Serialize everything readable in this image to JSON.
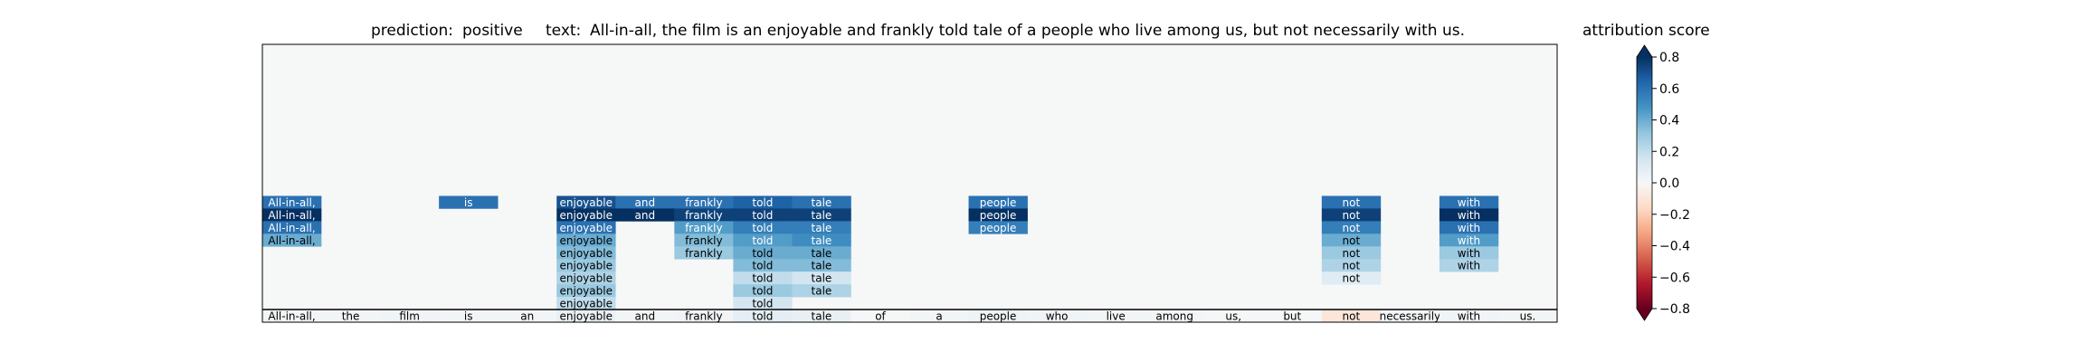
{
  "chart_data": {
    "type": "heatmap",
    "prediction_label": "prediction:",
    "prediction": "positive",
    "text_label": "text:",
    "text": "All-in-all, the film is an enjoyable and frankly told tale of a people who live among us, but not necessarily with us.",
    "tokens": [
      "All-in-all,",
      "the",
      "film",
      "is",
      "an",
      "enjoyable",
      "and",
      "frankly",
      "told",
      "tale",
      "of",
      "a",
      "people",
      "who",
      "live",
      "among",
      "us,",
      "but",
      "not",
      "necessarily",
      "with",
      "us."
    ],
    "rows": [
      [
        0,
        0,
        0,
        0,
        0,
        0,
        0,
        0,
        0,
        0,
        0,
        0,
        0,
        0,
        0,
        0,
        0,
        0,
        0,
        0,
        0,
        0
      ],
      [
        0,
        0,
        0,
        0,
        0,
        0,
        0,
        0,
        0,
        0,
        0,
        0,
        0,
        0,
        0,
        0,
        0,
        0,
        0,
        0,
        0,
        0
      ],
      [
        0,
        0,
        0,
        0,
        0,
        0,
        0,
        0,
        0,
        0,
        0,
        0,
        0,
        0,
        0,
        0,
        0,
        0,
        0,
        0,
        0,
        0
      ],
      [
        0,
        0,
        0,
        0,
        0,
        0,
        0,
        0,
        0,
        0,
        0,
        0,
        0,
        0,
        0,
        0,
        0,
        0,
        0,
        0,
        0,
        0
      ],
      [
        0,
        0,
        0,
        0,
        0,
        0,
        0,
        0,
        0,
        0,
        0,
        0,
        0,
        0,
        0,
        0,
        0,
        0,
        0,
        0,
        0,
        0
      ],
      [
        0,
        0,
        0,
        0,
        0,
        0,
        0,
        0,
        0,
        0,
        0,
        0,
        0,
        0,
        0,
        0,
        0,
        0,
        0,
        0,
        0,
        0
      ],
      [
        0,
        0,
        0,
        0,
        0,
        0,
        0,
        0,
        0,
        0,
        0,
        0,
        0,
        0,
        0,
        0,
        0,
        0,
        0,
        0,
        0,
        0
      ],
      [
        0,
        0,
        0,
        0,
        0,
        0,
        0,
        0,
        0,
        0,
        0,
        0,
        0,
        0,
        0,
        0,
        0,
        0,
        0,
        0,
        0,
        0
      ],
      [
        0,
        0,
        0,
        0,
        0,
        0,
        0,
        0,
        0,
        0,
        0,
        0,
        0,
        0,
        0,
        0,
        0,
        0,
        0,
        0,
        0,
        0
      ],
      [
        0,
        0,
        0,
        0,
        0,
        0,
        0,
        0,
        0,
        0,
        0,
        0,
        0,
        0,
        0,
        0,
        0,
        0,
        0,
        0,
        0,
        0
      ],
      [
        0,
        0,
        0,
        0,
        0,
        0,
        0,
        0,
        0,
        0,
        0,
        0,
        0,
        0,
        0,
        0,
        0,
        0,
        0,
        0,
        0,
        0
      ],
      [
        0,
        0,
        0,
        0,
        0,
        0,
        0,
        0,
        0,
        0,
        0,
        0,
        0,
        0,
        0,
        0,
        0,
        0,
        0,
        0,
        0,
        0
      ],
      [
        0.6,
        0,
        0,
        0.6,
        0,
        0.7,
        0.6,
        0.6,
        0.65,
        0.6,
        0,
        0,
        0.6,
        0,
        0,
        0,
        0,
        0,
        0.6,
        0,
        0.6,
        0
      ],
      [
        0.8,
        0,
        0,
        0,
        0,
        0.8,
        0.8,
        0.75,
        0.75,
        0.75,
        0,
        0,
        0.8,
        0,
        0,
        0,
        0,
        0,
        0.75,
        0,
        0.8,
        0
      ],
      [
        0.6,
        0,
        0,
        0,
        0,
        0.6,
        0,
        0.45,
        0.55,
        0.55,
        0,
        0,
        0.55,
        0,
        0,
        0,
        0,
        0,
        0.55,
        0,
        0.6,
        0
      ],
      [
        0.4,
        0,
        0,
        0,
        0,
        0.4,
        0,
        0.35,
        0.45,
        0.5,
        0,
        0,
        0,
        0,
        0,
        0,
        0,
        0,
        0.4,
        0,
        0.45,
        0
      ],
      [
        0,
        0,
        0,
        0,
        0,
        0.35,
        0,
        0.3,
        0.4,
        0.4,
        0,
        0,
        0,
        0,
        0,
        0,
        0,
        0,
        0.3,
        0,
        0.3,
        0
      ],
      [
        0,
        0,
        0,
        0,
        0,
        0.3,
        0,
        0,
        0.35,
        0.35,
        0,
        0,
        0,
        0,
        0,
        0,
        0,
        0,
        0.25,
        0,
        0.25,
        0
      ],
      [
        0,
        0,
        0,
        0,
        0,
        0.25,
        0,
        0,
        0.2,
        0.15,
        0,
        0,
        0,
        0,
        0,
        0,
        0,
        0,
        0.1,
        0,
        0,
        0
      ],
      [
        0,
        0,
        0,
        0,
        0,
        0.3,
        0,
        0,
        0.3,
        0.25,
        0,
        0,
        0,
        0,
        0,
        0,
        0,
        0,
        0,
        0,
        0,
        0
      ],
      [
        0,
        0,
        0,
        0,
        0,
        0.2,
        0,
        0,
        0.15,
        0,
        0,
        0,
        0,
        0,
        0,
        0,
        0,
        0,
        0,
        0,
        0,
        0
      ],
      [
        0.02,
        0.02,
        0.03,
        0.02,
        0.02,
        0.06,
        0.02,
        0.03,
        0.08,
        0.06,
        0.01,
        0.02,
        0.04,
        0.03,
        0.02,
        0.02,
        0.01,
        0.01,
        -0.1,
        0.02,
        0.03,
        0.02
      ]
    ],
    "show_token_text": [
      [
        0,
        0,
        0,
        0,
        0,
        0,
        0,
        0,
        0,
        0,
        0,
        0,
        0,
        0,
        0,
        0,
        0,
        0,
        0,
        0,
        0,
        0
      ],
      [
        0,
        0,
        0,
        0,
        0,
        0,
        0,
        0,
        0,
        0,
        0,
        0,
        0,
        0,
        0,
        0,
        0,
        0,
        0,
        0,
        0,
        0
      ],
      [
        0,
        0,
        0,
        0,
        0,
        0,
        0,
        0,
        0,
        0,
        0,
        0,
        0,
        0,
        0,
        0,
        0,
        0,
        0,
        0,
        0,
        0
      ],
      [
        0,
        0,
        0,
        0,
        0,
        0,
        0,
        0,
        0,
        0,
        0,
        0,
        0,
        0,
        0,
        0,
        0,
        0,
        0,
        0,
        0,
        0
      ],
      [
        0,
        0,
        0,
        0,
        0,
        0,
        0,
        0,
        0,
        0,
        0,
        0,
        0,
        0,
        0,
        0,
        0,
        0,
        0,
        0,
        0,
        0
      ],
      [
        0,
        0,
        0,
        0,
        0,
        0,
        0,
        0,
        0,
        0,
        0,
        0,
        0,
        0,
        0,
        0,
        0,
        0,
        0,
        0,
        0,
        0
      ],
      [
        0,
        0,
        0,
        0,
        0,
        0,
        0,
        0,
        0,
        0,
        0,
        0,
        0,
        0,
        0,
        0,
        0,
        0,
        0,
        0,
        0,
        0
      ],
      [
        0,
        0,
        0,
        0,
        0,
        0,
        0,
        0,
        0,
        0,
        0,
        0,
        0,
        0,
        0,
        0,
        0,
        0,
        0,
        0,
        0,
        0
      ],
      [
        0,
        0,
        0,
        0,
        0,
        0,
        0,
        0,
        0,
        0,
        0,
        0,
        0,
        0,
        0,
        0,
        0,
        0,
        0,
        0,
        0,
        0
      ],
      [
        0,
        0,
        0,
        0,
        0,
        0,
        0,
        0,
        0,
        0,
        0,
        0,
        0,
        0,
        0,
        0,
        0,
        0,
        0,
        0,
        0,
        0
      ],
      [
        0,
        0,
        0,
        0,
        0,
        0,
        0,
        0,
        0,
        0,
        0,
        0,
        0,
        0,
        0,
        0,
        0,
        0,
        0,
        0,
        0,
        0
      ],
      [
        0,
        0,
        0,
        0,
        0,
        0,
        0,
        0,
        0,
        0,
        0,
        0,
        0,
        0,
        0,
        0,
        0,
        0,
        0,
        0,
        0,
        0
      ],
      [
        1,
        0,
        0,
        1,
        0,
        1,
        1,
        1,
        1,
        1,
        0,
        0,
        1,
        0,
        0,
        0,
        0,
        0,
        1,
        0,
        1,
        0
      ],
      [
        1,
        0,
        0,
        0,
        0,
        1,
        1,
        1,
        1,
        1,
        0,
        0,
        1,
        0,
        0,
        0,
        0,
        0,
        1,
        0,
        1,
        0
      ],
      [
        1,
        0,
        0,
        0,
        0,
        1,
        0,
        1,
        1,
        1,
        0,
        0,
        1,
        0,
        0,
        0,
        0,
        0,
        1,
        0,
        1,
        0
      ],
      [
        1,
        0,
        0,
        0,
        0,
        1,
        0,
        1,
        1,
        1,
        0,
        0,
        0,
        0,
        0,
        0,
        0,
        0,
        1,
        0,
        1,
        0
      ],
      [
        0,
        0,
        0,
        0,
        0,
        1,
        0,
        1,
        1,
        1,
        0,
        0,
        0,
        0,
        0,
        0,
        0,
        0,
        1,
        0,
        1,
        0
      ],
      [
        0,
        0,
        0,
        0,
        0,
        1,
        0,
        0,
        1,
        1,
        0,
        0,
        0,
        0,
        0,
        0,
        0,
        0,
        1,
        0,
        1,
        0
      ],
      [
        0,
        0,
        0,
        0,
        0,
        1,
        0,
        0,
        1,
        1,
        0,
        0,
        0,
        0,
        0,
        0,
        0,
        0,
        1,
        0,
        0,
        0
      ],
      [
        0,
        0,
        0,
        0,
        0,
        1,
        0,
        0,
        1,
        1,
        0,
        0,
        0,
        0,
        0,
        0,
        0,
        0,
        0,
        0,
        0,
        0
      ],
      [
        0,
        0,
        0,
        0,
        0,
        1,
        0,
        0,
        1,
        0,
        0,
        0,
        0,
        0,
        0,
        0,
        0,
        0,
        0,
        0,
        0,
        0
      ],
      [
        1,
        1,
        1,
        1,
        1,
        1,
        1,
        1,
        1,
        1,
        1,
        1,
        1,
        1,
        1,
        1,
        1,
        1,
        1,
        1,
        1,
        1
      ]
    ],
    "colorbar": {
      "title": "attribution score",
      "colormap": "RdBu",
      "range": [
        -0.8,
        0.8
      ],
      "extend": "both",
      "ticks": [
        0.8,
        0.6,
        0.4,
        0.2,
        0.0,
        -0.2,
        -0.4,
        -0.6,
        -0.8
      ],
      "tick_labels": [
        "0.8",
        "0.6",
        "0.4",
        "0.2",
        "0.0",
        "−0.2",
        "−0.4",
        "−0.6",
        "−0.8"
      ]
    },
    "colors": {
      "background": "#f6f7f7",
      "frame": "#000000",
      "dark_text": "#ffffff",
      "light_text": "#000000"
    }
  }
}
